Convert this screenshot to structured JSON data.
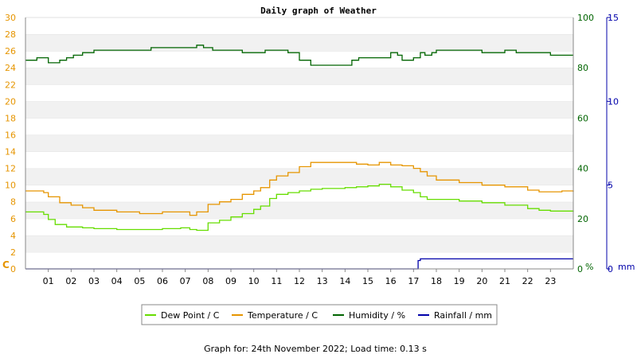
{
  "chart_data": {
    "type": "line",
    "title": "Daily graph of Weather",
    "footer": "Graph for: 24th November 2022; Load time: 0.13 s",
    "x_ticks": [
      "01",
      "02",
      "03",
      "04",
      "05",
      "06",
      "07",
      "08",
      "09",
      "10",
      "11",
      "12",
      "13",
      "14",
      "15",
      "16",
      "17",
      "18",
      "19",
      "20",
      "21",
      "22",
      "23"
    ],
    "x_range": [
      0,
      24
    ],
    "axes": {
      "left": {
        "unit": "C",
        "range": [
          0,
          30
        ],
        "ticks": [
          0,
          2,
          4,
          6,
          8,
          10,
          12,
          14,
          16,
          18,
          20,
          22,
          24,
          26,
          28,
          30
        ],
        "color": "#e69500"
      },
      "right1": {
        "unit": "%",
        "range": [
          0,
          100
        ],
        "ticks": [
          0,
          20,
          40,
          60,
          80,
          100
        ],
        "color": "#006400"
      },
      "right2": {
        "unit": "mm",
        "range": [
          0,
          15
        ],
        "ticks": [
          0,
          5,
          10,
          15
        ],
        "color": "#0000aa"
      }
    },
    "grid": "horizontal-bands",
    "legend_position": "bottom",
    "series": [
      {
        "name": "Dew Point / C",
        "axis": "left",
        "color": "#66dd00",
        "x": [
          0,
          0.5,
          0.8,
          1.0,
          1.3,
          1.8,
          2.5,
          3,
          4,
          5,
          6,
          6.8,
          7.2,
          7.5,
          8,
          8.5,
          9,
          9.5,
          10,
          10.3,
          10.7,
          11,
          11.5,
          12,
          12.5,
          13,
          13.5,
          14,
          14.5,
          15,
          15.5,
          16,
          16.5,
          17,
          17.3,
          17.6,
          18,
          19,
          20,
          21,
          22,
          22.5,
          23,
          23.5,
          24
        ],
        "y": [
          6.8,
          6.8,
          6.5,
          5.9,
          5.3,
          5.0,
          4.9,
          4.8,
          4.7,
          4.7,
          4.8,
          4.9,
          4.7,
          4.6,
          5.5,
          5.8,
          6.2,
          6.6,
          7.1,
          7.5,
          8.4,
          8.9,
          9.1,
          9.3,
          9.5,
          9.6,
          9.6,
          9.7,
          9.8,
          9.9,
          10.1,
          9.8,
          9.4,
          9.1,
          8.6,
          8.3,
          8.3,
          8.1,
          7.9,
          7.6,
          7.2,
          7.0,
          6.9,
          6.9,
          6.8
        ]
      },
      {
        "name": "Temperature / C",
        "axis": "left",
        "color": "#e69500",
        "x": [
          0,
          0.5,
          0.8,
          1.0,
          1.5,
          2,
          2.5,
          3,
          4,
          5,
          5.5,
          6,
          6.8,
          7.2,
          7.5,
          8,
          8.5,
          9,
          9.5,
          10,
          10.3,
          10.7,
          11,
          11.5,
          12,
          12.5,
          13,
          13.5,
          14,
          14.5,
          15,
          15.5,
          16,
          16.5,
          17,
          17.3,
          17.6,
          18,
          19,
          20,
          21,
          22,
          22.5,
          23,
          23.5,
          24
        ],
        "y": [
          9.3,
          9.3,
          9.1,
          8.6,
          7.9,
          7.6,
          7.3,
          7.0,
          6.8,
          6.6,
          6.6,
          6.8,
          6.8,
          6.4,
          6.8,
          7.7,
          8.0,
          8.3,
          8.9,
          9.3,
          9.7,
          10.6,
          11.1,
          11.5,
          12.2,
          12.7,
          12.7,
          12.7,
          12.7,
          12.5,
          12.4,
          12.7,
          12.4,
          12.3,
          12.0,
          11.6,
          11.1,
          10.6,
          10.3,
          10.0,
          9.8,
          9.4,
          9.2,
          9.2,
          9.3,
          9.2
        ]
      },
      {
        "name": "Humidity / %",
        "axis": "right1",
        "color": "#006400",
        "x": [
          0,
          0.5,
          1.0,
          1.5,
          1.8,
          2.1,
          2.5,
          3,
          4,
          5,
          5.5,
          6,
          6.5,
          7,
          7.3,
          7.5,
          7.8,
          8.2,
          8.5,
          9,
          9.5,
          10,
          10.5,
          11,
          11.5,
          12,
          12.5,
          13,
          13.5,
          14,
          14.3,
          14.6,
          15,
          15.5,
          16,
          16.3,
          16.5,
          17,
          17.3,
          17.5,
          17.8,
          18,
          18.5,
          19,
          19.5,
          20,
          20.5,
          21,
          21.5,
          22,
          22.5,
          23,
          23.5,
          24
        ],
        "y": [
          83,
          84,
          82,
          83,
          84,
          85,
          86,
          87,
          87,
          87,
          88,
          88,
          88,
          88,
          88,
          89,
          88,
          87,
          87,
          87,
          86,
          86,
          87,
          87,
          86,
          83,
          81,
          81,
          81,
          81,
          83,
          84,
          84,
          84,
          86,
          85,
          83,
          84,
          86,
          85,
          86,
          87,
          87,
          87,
          87,
          86,
          86,
          87,
          86,
          86,
          86,
          85,
          85,
          85
        ]
      },
      {
        "name": "Rainfall / mm",
        "axis": "right2",
        "color": "#0000aa",
        "x": [
          0,
          17,
          17.2,
          17.3,
          24
        ],
        "y": [
          0,
          0,
          0.5,
          0.6,
          0.6
        ]
      }
    ]
  }
}
